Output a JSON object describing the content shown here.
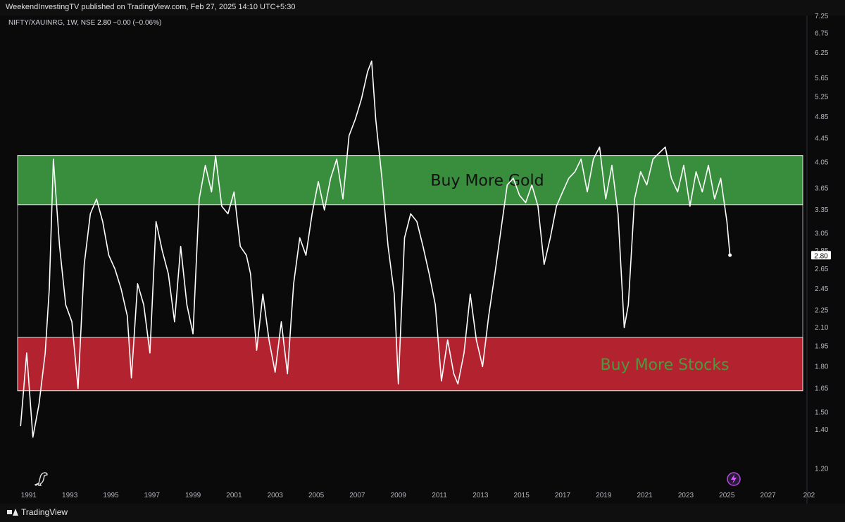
{
  "header": {
    "publisher": "WeekendInvestingTV published on TradingView.com, Feb 27, 2025 14:10 UTC+5:30",
    "symbol": "NIFTY/XAUINRG, 1W, NSE",
    "last_value": "2.80",
    "change": "−0.00 (−0.06%)"
  },
  "footer": {
    "brand": "TradingView"
  },
  "colors": {
    "background": "#0a0a0a",
    "line": "#ffffff",
    "gold_zone": "#388e3c",
    "stocks_zone": "#b3232f",
    "stocks_text": "#4c9a3e",
    "gold_text": "#111111"
  },
  "chart_data": {
    "type": "line",
    "series": [
      {
        "x": [
          1990.6,
          1990.9,
          1991.2,
          1991.5,
          1991.8,
          1992.0,
          1992.2,
          1992.5,
          1992.8,
          1993.1,
          1993.4,
          1993.7,
          1994.0,
          1994.3,
          1994.6,
          1994.9,
          1995.2,
          1995.5,
          1995.8,
          1996.0,
          1996.3,
          1996.6,
          1996.9,
          1997.2,
          1997.5,
          1997.8,
          1998.1,
          1998.4,
          1998.7,
          1999.0,
          1999.3,
          1999.6,
          1999.9,
          2000.1,
          2000.4,
          2000.7,
          2001.0,
          2001.3,
          2001.6,
          2001.8,
          2002.1,
          2002.4,
          2002.7,
          2003.0,
          2003.3,
          2003.6,
          2003.9,
          2004.2,
          2004.5,
          2004.8,
          2005.1,
          2005.4,
          2005.7,
          2006.0,
          2006.3,
          2006.6,
          2006.9,
          2007.2,
          2007.5,
          2007.7,
          2007.9,
          2008.2,
          2008.5,
          2008.8,
          2009.0,
          2009.3,
          2009.6,
          2009.9,
          2010.2,
          2010.5,
          2010.8,
          2011.1,
          2011.4,
          2011.7,
          2011.9,
          2012.2,
          2012.5,
          2012.8,
          2013.1,
          2013.4,
          2013.7,
          2014.0,
          2014.3,
          2014.6,
          2014.9,
          2015.2,
          2015.5,
          2015.8,
          2016.1,
          2016.4,
          2016.7,
          2017.0,
          2017.3,
          2017.6,
          2017.9,
          2018.2,
          2018.5,
          2018.8,
          2019.1,
          2019.4,
          2019.7,
          2020.0,
          2020.2,
          2020.5,
          2020.8,
          2021.1,
          2021.4,
          2021.7,
          2022.0,
          2022.3,
          2022.6,
          2022.9,
          2023.2,
          2023.5,
          2023.8,
          2024.1,
          2024.4,
          2024.7,
          2025.0,
          2025.15
        ],
        "y": [
          1.42,
          1.9,
          1.36,
          1.55,
          1.9,
          2.45,
          4.1,
          2.9,
          2.3,
          2.15,
          1.65,
          2.7,
          3.3,
          3.5,
          3.2,
          2.8,
          2.65,
          2.45,
          2.2,
          1.72,
          2.5,
          2.3,
          1.9,
          3.2,
          2.85,
          2.6,
          2.15,
          2.9,
          2.3,
          2.05,
          3.5,
          4.0,
          3.6,
          4.15,
          3.4,
          3.3,
          3.6,
          2.9,
          2.8,
          2.6,
          1.92,
          2.4,
          2.0,
          1.76,
          2.15,
          1.75,
          2.5,
          3.0,
          2.8,
          3.3,
          3.75,
          3.35,
          3.8,
          4.1,
          3.5,
          4.5,
          4.8,
          5.2,
          5.8,
          6.05,
          4.8,
          3.8,
          2.9,
          2.4,
          1.68,
          3.0,
          3.3,
          3.2,
          2.9,
          2.6,
          2.3,
          1.7,
          2.0,
          1.75,
          1.68,
          1.9,
          2.4,
          2.0,
          1.8,
          2.2,
          2.6,
          3.1,
          3.7,
          3.8,
          3.55,
          3.45,
          3.7,
          3.4,
          2.7,
          3.0,
          3.4,
          3.6,
          3.8,
          3.9,
          4.1,
          3.6,
          4.1,
          4.3,
          3.5,
          4.0,
          3.3,
          2.1,
          2.3,
          3.5,
          3.9,
          3.7,
          4.1,
          4.2,
          4.3,
          3.8,
          3.6,
          4.0,
          3.4,
          3.9,
          3.6,
          4.0,
          3.5,
          3.8,
          3.2,
          2.8
        ]
      }
    ],
    "zones": [
      {
        "label": "Buy More Gold",
        "y_low": 3.42,
        "y_high": 4.16
      },
      {
        "label": "Buy More  Stocks",
        "y_low": 1.635,
        "y_high": 2.02
      }
    ],
    "last_price_label": "2.80",
    "xlim": [
      1989.6,
      2028.9
    ],
    "ylim": [
      1.12,
      7.25
    ],
    "y_scale": "log",
    "y_ticks": [
      "7.25",
      "6.75",
      "6.25",
      "5.65",
      "5.25",
      "4.85",
      "4.45",
      "4.05",
      "3.65",
      "3.35",
      "3.05",
      "2.85",
      "2.65",
      "2.45",
      "2.25",
      "2.10",
      "1.95",
      "1.80",
      "1.65",
      "1.50",
      "1.40",
      "1.20"
    ],
    "x_ticks": [
      "1991",
      "1993",
      "1995",
      "1997",
      "1999",
      "2001",
      "2003",
      "2005",
      "2007",
      "2009",
      "2011",
      "2013",
      "2015",
      "2017",
      "2019",
      "2021",
      "2023",
      "2025",
      "2027",
      "202"
    ],
    "grid": false,
    "legend": "none"
  }
}
